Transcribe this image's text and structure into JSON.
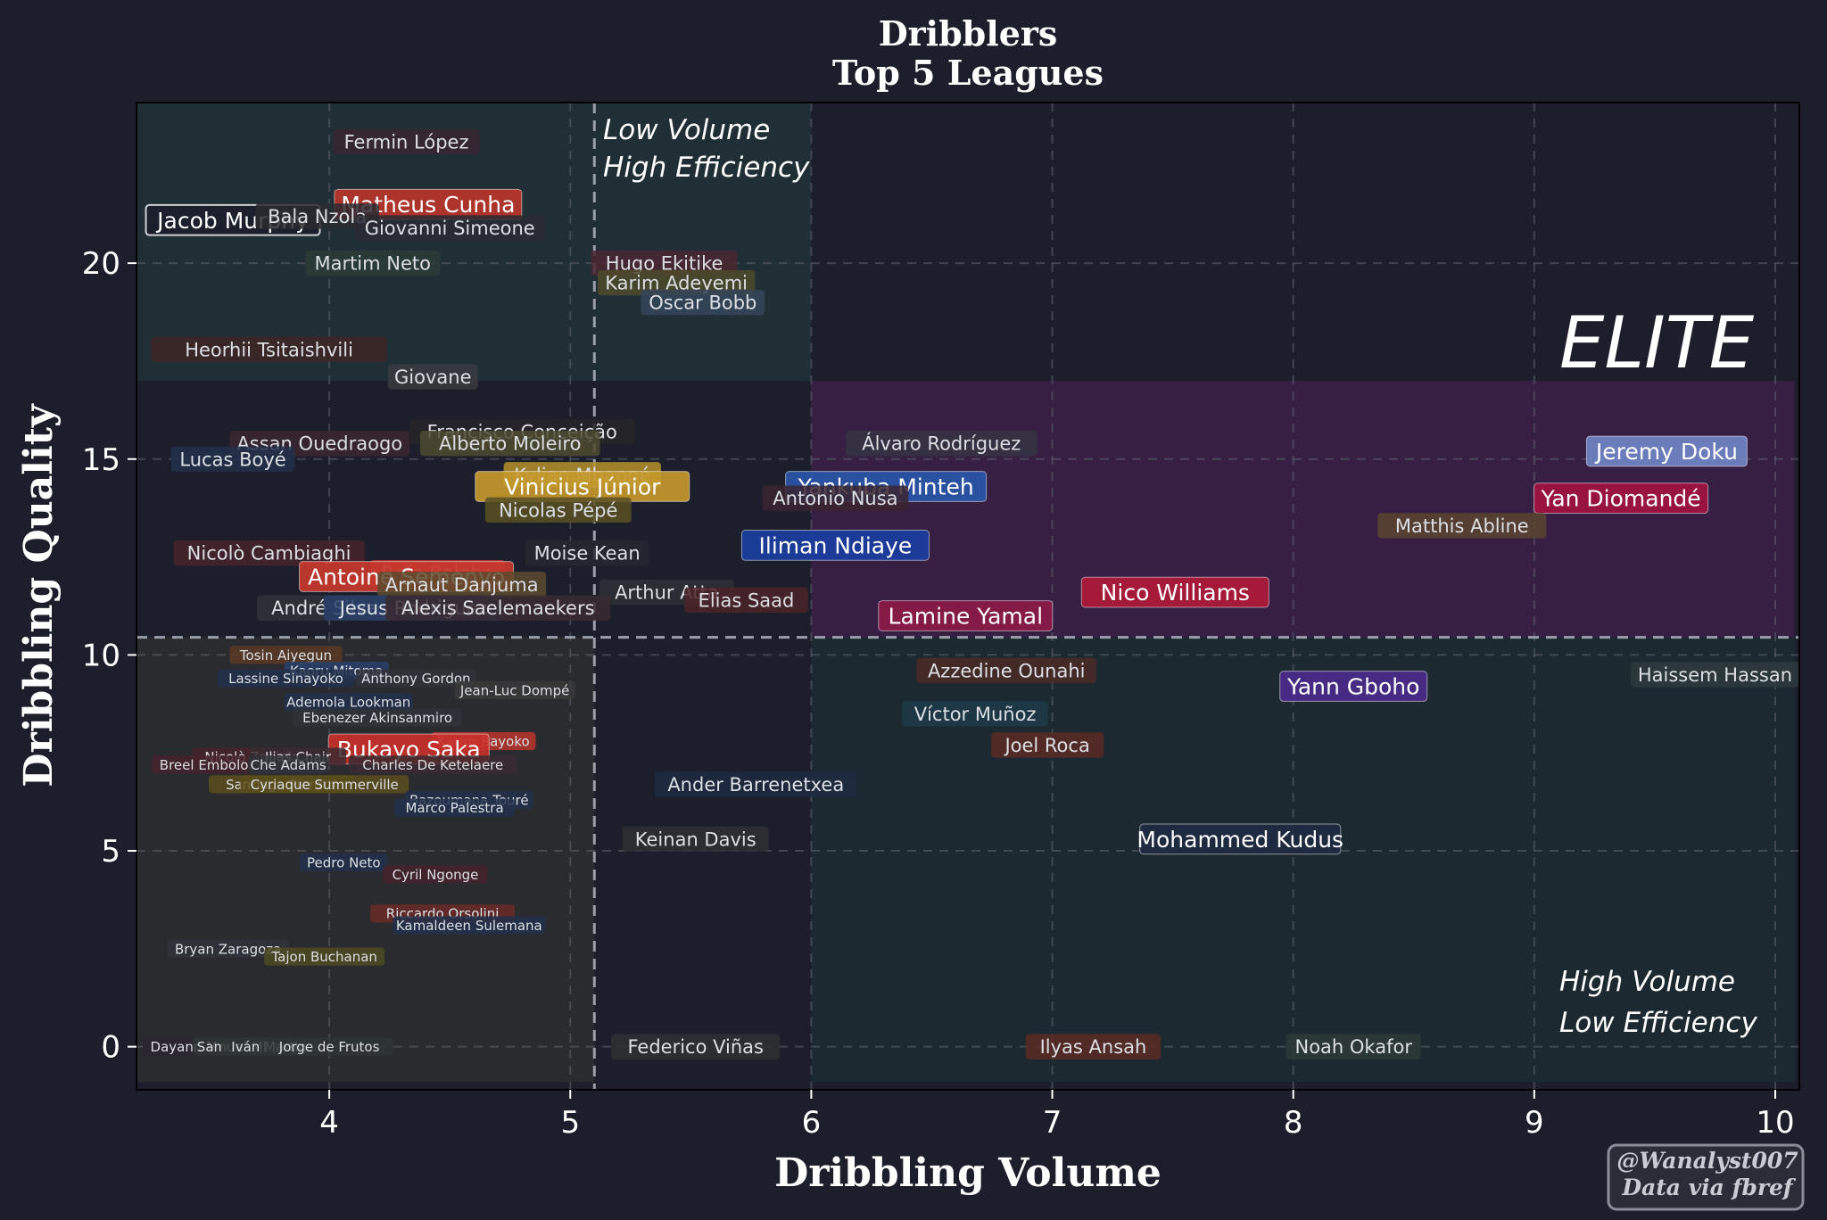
{
  "chart_data": {
    "type": "scatter",
    "title": "Dribblers",
    "subtitle": "Top 5 Leagues",
    "xlabel": "Dribbling Volume",
    "ylabel": "Dribbling Quality",
    "xlim": [
      3.2,
      10.1
    ],
    "ylim": [
      -1.1,
      24.1
    ],
    "xticks": [
      4,
      5,
      6,
      7,
      8,
      9,
      10
    ],
    "yticks": [
      0,
      5,
      10,
      15,
      20
    ],
    "grid": true,
    "threshold_x": 5.1,
    "threshold_y": 10.45,
    "zones": [
      {
        "x": [
          3.2,
          5.1
        ],
        "y": [
          -0.9,
          10.45
        ],
        "color": "#2f3030",
        "opacity": 0.75
      },
      {
        "x": [
          3.2,
          6.0
        ],
        "y": [
          17.0,
          24.1
        ],
        "color": "#233a3d",
        "opacity": 0.6
      },
      {
        "x": [
          6.0,
          10.08
        ],
        "y": [
          10.45,
          17.0
        ],
        "color": "#4a1f55",
        "opacity": 0.6
      },
      {
        "x": [
          6.0,
          10.08
        ],
        "y": [
          -0.9,
          10.45
        ],
        "color": "#1e3236",
        "opacity": 0.55
      }
    ],
    "annotations": {
      "top_left": [
        "Low Volume",
        "High Efficiency"
      ],
      "elite": "ELITE",
      "bottom_right": [
        "High Volume",
        "Low Efficiency"
      ]
    },
    "points": [
      {
        "name": "Fermin López",
        "x": 4.32,
        "y": 23.1,
        "size": "s",
        "color": "#3a2630"
      },
      {
        "name": "Matheus Cunha",
        "x": 4.41,
        "y": 21.5,
        "size": "l",
        "color": "#b8352a"
      },
      {
        "name": "Jacob Murphy",
        "x": 3.6,
        "y": 21.1,
        "size": "l",
        "color": "#1c1f2b",
        "border": "#d0d0d0"
      },
      {
        "name": "Bala Nzola",
        "x": 3.95,
        "y": 21.2,
        "size": "s",
        "color": "#2a2a30"
      },
      {
        "name": "Giovanni Simeone",
        "x": 4.5,
        "y": 20.9,
        "size": "s",
        "color": "#2a2a33"
      },
      {
        "name": "Martim Neto",
        "x": 4.18,
        "y": 20.0,
        "size": "s",
        "color": "#2c3b36"
      },
      {
        "name": "Hugo Ekitike",
        "x": 5.39,
        "y": 20.0,
        "size": "s",
        "color": "#4a2630"
      },
      {
        "name": "Karim Adeyemi",
        "x": 5.44,
        "y": 19.5,
        "size": "s",
        "color": "#4e4a2a"
      },
      {
        "name": "Oscar Bobb",
        "x": 5.55,
        "y": 19.0,
        "size": "s",
        "color": "#35455a"
      },
      {
        "name": "Heorhii Tsitaishvili",
        "x": 3.75,
        "y": 17.8,
        "size": "s",
        "color": "#3e2626"
      },
      {
        "name": "Giovane",
        "x": 4.43,
        "y": 17.1,
        "size": "s",
        "color": "#3a3a3f"
      },
      {
        "name": "Francisco Conceição",
        "x": 4.8,
        "y": 15.7,
        "size": "s",
        "color": "#252528"
      },
      {
        "name": "Assan Ouedraogo",
        "x": 3.96,
        "y": 15.4,
        "size": "s",
        "color": "#3b2630"
      },
      {
        "name": "Alberto Moleiro",
        "x": 4.75,
        "y": 15.4,
        "size": "s",
        "color": "#4d4a30"
      },
      {
        "name": "Álvaro Rodríguez",
        "x": 6.54,
        "y": 15.4,
        "size": "s",
        "color": "#353542"
      },
      {
        "name": "Lucas Boyé",
        "x": 3.6,
        "y": 15.0,
        "size": "s",
        "color": "#22304a"
      },
      {
        "name": "Jeremy Doku",
        "x": 9.55,
        "y": 15.2,
        "size": "l",
        "color": "#6f84c4"
      },
      {
        "name": "Kylian Mbappé",
        "x": 5.05,
        "y": 14.6,
        "size": "s",
        "color": "#b5922a"
      },
      {
        "name": "Vinicius Júnior",
        "x": 5.05,
        "y": 14.3,
        "size": "l",
        "color": "#c4982b"
      },
      {
        "name": "Yankuba Minteh",
        "x": 6.31,
        "y": 14.3,
        "size": "l",
        "color": "#2955a8"
      },
      {
        "name": "Antonio Nusa",
        "x": 6.1,
        "y": 14.0,
        "size": "s",
        "color": "#3a2430"
      },
      {
        "name": "Yan Diomandé",
        "x": 9.36,
        "y": 14.0,
        "size": "l",
        "color": "#a21240"
      },
      {
        "name": "Nicolas Pépé",
        "x": 4.95,
        "y": 13.7,
        "size": "s",
        "color": "#5a5023"
      },
      {
        "name": "Matthis Abline",
        "x": 8.7,
        "y": 13.3,
        "size": "s",
        "color": "#5a4530"
      },
      {
        "name": "Iliman Ndiaye",
        "x": 6.1,
        "y": 12.8,
        "size": "l",
        "color": "#1a3ea0"
      },
      {
        "name": "Nicolò Cambiaghi",
        "x": 3.75,
        "y": 12.6,
        "size": "s",
        "color": "#45232a"
      },
      {
        "name": "Moise Kean",
        "x": 5.07,
        "y": 12.6,
        "size": "s",
        "color": "#252830"
      },
      {
        "name": "Rafa Baleba",
        "x": 4.45,
        "y": 12.1,
        "size": "s",
        "color": "#b8352a"
      },
      {
        "name": "Antoine Semenyo",
        "x": 4.32,
        "y": 12.0,
        "size": "l",
        "color": "#c8372c"
      },
      {
        "name": "Arnaut Danjuma",
        "x": 4.55,
        "y": 11.8,
        "size": "s",
        "color": "#5a4a2e"
      },
      {
        "name": "Arthur Atta",
        "x": 5.4,
        "y": 11.6,
        "size": "s",
        "color": "#2d3035"
      },
      {
        "name": "Elias Saad",
        "x": 5.73,
        "y": 11.4,
        "size": "s",
        "color": "#4a2428"
      },
      {
        "name": "Nico Williams",
        "x": 7.51,
        "y": 11.6,
        "size": "l",
        "color": "#b01a38"
      },
      {
        "name": "Lamine Yamal",
        "x": 6.64,
        "y": 11.0,
        "size": "l",
        "color": "#8c1a48"
      },
      {
        "name": "André Silva",
        "x": 3.98,
        "y": 11.2,
        "size": "s",
        "color": "#30333a"
      },
      {
        "name": "Jesus Rodriguez",
        "x": 4.35,
        "y": 11.2,
        "size": "s",
        "color": "#29406a"
      },
      {
        "name": "Alexis Saelemaekers",
        "x": 4.7,
        "y": 11.2,
        "size": "s",
        "color": "#3a2a30"
      },
      {
        "name": "Tosin Aiyegun",
        "x": 3.82,
        "y": 10.0,
        "size": "xs",
        "color": "#5a3a24"
      },
      {
        "name": "Kaoru Mitoma",
        "x": 4.03,
        "y": 9.6,
        "size": "xs",
        "color": "#29406a"
      },
      {
        "name": "Lassine Sinayoko",
        "x": 3.82,
        "y": 9.4,
        "size": "xs",
        "color": "#22304a"
      },
      {
        "name": "Anthony Gordon",
        "x": 4.36,
        "y": 9.4,
        "size": "xs",
        "color": "#30333a"
      },
      {
        "name": "Jean-Luc Dompé",
        "x": 4.77,
        "y": 9.1,
        "size": "xs",
        "color": "#3a3a3a"
      },
      {
        "name": "Azzedine Ounahi",
        "x": 6.81,
        "y": 9.6,
        "size": "s",
        "color": "#4a2a26"
      },
      {
        "name": "Haissem Hassan",
        "x": 9.75,
        "y": 9.5,
        "size": "s",
        "color": "#2e3a3c"
      },
      {
        "name": "Yann Gboho",
        "x": 8.25,
        "y": 9.2,
        "size": "l",
        "color": "#4a2a8a"
      },
      {
        "name": "Ademola Lookman",
        "x": 4.08,
        "y": 8.8,
        "size": "xs",
        "color": "#22304a"
      },
      {
        "name": "Víctor Muñoz",
        "x": 6.68,
        "y": 8.5,
        "size": "s",
        "color": "#1d3a48"
      },
      {
        "name": "Ebenezer Akinsanmiro",
        "x": 4.2,
        "y": 8.4,
        "size": "xs",
        "color": "#30333a"
      },
      {
        "name": "Joel Roca",
        "x": 6.98,
        "y": 7.7,
        "size": "s",
        "color": "#5a2a24"
      },
      {
        "name": "Karim Bayoko",
        "x": 4.64,
        "y": 7.8,
        "size": "xs",
        "color": "#b8352a"
      },
      {
        "name": "Bukayo Saka",
        "x": 4.33,
        "y": 7.6,
        "size": "l",
        "color": "#c8302a"
      },
      {
        "name": "Nicolò Zaniolo",
        "x": 3.68,
        "y": 7.4,
        "size": "xs",
        "color": "#45232a"
      },
      {
        "name": "Ilias Chair",
        "x": 3.87,
        "y": 7.4,
        "size": "xs",
        "color": "#3a2a30"
      },
      {
        "name": "Breel Embolo",
        "x": 3.48,
        "y": 7.2,
        "size": "xs",
        "color": "#45232a"
      },
      {
        "name": "Che Adams",
        "x": 3.83,
        "y": 7.2,
        "size": "xs",
        "color": "#30333a"
      },
      {
        "name": "Charles De Ketelaere",
        "x": 4.43,
        "y": 7.2,
        "size": "xs",
        "color": "#3a2a30"
      },
      {
        "name": "Ander Barrenetxea",
        "x": 5.77,
        "y": 6.7,
        "size": "s",
        "color": "#1e2a40"
      },
      {
        "name": "Santiago Pierotti",
        "x": 3.8,
        "y": 6.7,
        "size": "xs",
        "color": "#5a4e1c"
      },
      {
        "name": "Cyriaque Summerville",
        "x": 3.98,
        "y": 6.7,
        "size": "xs",
        "color": "#5a4e1c"
      },
      {
        "name": "Bazoumana Touré",
        "x": 4.58,
        "y": 6.3,
        "size": "xs",
        "color": "#22304a"
      },
      {
        "name": "Marco Palestra",
        "x": 4.52,
        "y": 6.1,
        "size": "xs",
        "color": "#22304a"
      },
      {
        "name": "Keinan Davis",
        "x": 5.52,
        "y": 5.3,
        "size": "s",
        "color": "#2e3033"
      },
      {
        "name": "Mohammed Kudus",
        "x": 7.78,
        "y": 5.3,
        "size": "l",
        "color": "#1e2a40"
      },
      {
        "name": "Pedro Neto",
        "x": 4.06,
        "y": 4.7,
        "size": "xs",
        "color": "#22304a"
      },
      {
        "name": "Cyril Ngonge",
        "x": 4.44,
        "y": 4.4,
        "size": "xs",
        "color": "#45232a"
      },
      {
        "name": "Riccardo Orsolini",
        "x": 4.47,
        "y": 3.4,
        "size": "xs",
        "color": "#6a2a28"
      },
      {
        "name": "Kamaldeen Sulemana",
        "x": 4.58,
        "y": 3.1,
        "size": "xs",
        "color": "#22304a"
      },
      {
        "name": "Bryan Zaragoza",
        "x": 3.58,
        "y": 2.5,
        "size": "xs",
        "color": "#30333a"
      },
      {
        "name": "Tajon Buchanan",
        "x": 3.98,
        "y": 2.3,
        "size": "xs",
        "color": "#4e4a22"
      },
      {
        "name": "Dayann Methalie",
        "x": 3.48,
        "y": 0.0,
        "size": "xs",
        "color": "#2a2530"
      },
      {
        "name": "Samuel Mbangula",
        "x": 3.7,
        "y": 0.0,
        "size": "xs",
        "color": "#2e3535"
      },
      {
        "name": "Iván Martin",
        "x": 3.75,
        "y": 0.0,
        "size": "xs",
        "color": "#2e3535"
      },
      {
        "name": "Jorge de Frutos",
        "x": 4.0,
        "y": 0.0,
        "size": "xs",
        "color": "#2e3535"
      },
      {
        "name": "Federico Viñas",
        "x": 5.52,
        "y": 0.0,
        "size": "s",
        "color": "#2e3033"
      },
      {
        "name": "Ilyas Ansah",
        "x": 7.17,
        "y": 0.0,
        "size": "s",
        "color": "#5a2a24"
      },
      {
        "name": "Noah Okafor",
        "x": 8.25,
        "y": 0.0,
        "size": "s",
        "color": "#2e3a36"
      }
    ]
  },
  "credit": [
    "@Wanalyst007",
    "Data via fbref"
  ]
}
